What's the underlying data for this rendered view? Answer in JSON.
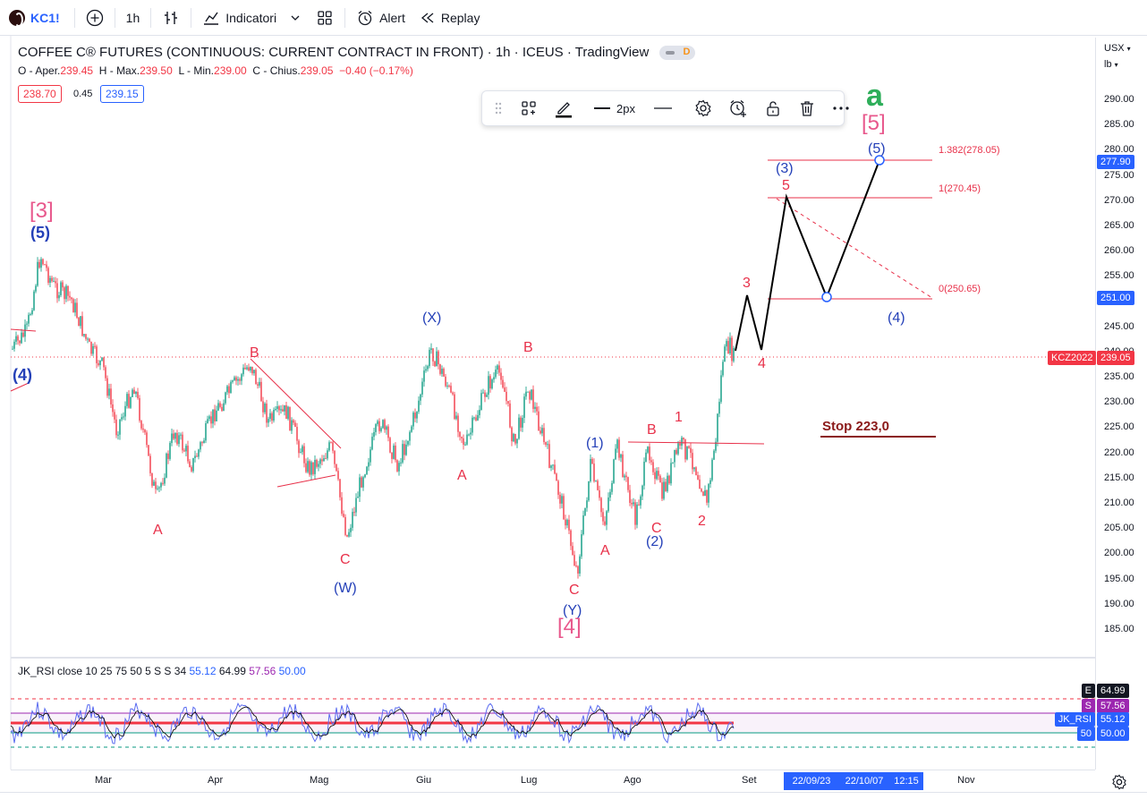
{
  "topbar": {
    "symbol": "KC1!",
    "add_icon": "plus-circle-icon",
    "interval": "1h",
    "bar_style_icon": "candles-icon",
    "indicators_label": "Indicatori",
    "templates_icon": "grid-icon",
    "alert_label": "Alert",
    "replay_label": "Replay"
  },
  "legend": {
    "title": "COFFEE C® FUTURES (CONTINUOUS: CURRENT CONTRACT IN FRONT) · 1h · ICEUS · TradingView",
    "badge": "D",
    "o_label": "O - Aper.",
    "o": "239.45",
    "h_label": "H - Max.",
    "h": "239.50",
    "l_label": "L - Min.",
    "l": "239.00",
    "c_label": "C - Chius.",
    "c": "239.05",
    "chg": "−0.40 (−0.17%)",
    "bid": "238.70",
    "spread": "0.45",
    "ask": "239.15"
  },
  "drawing_toolbar": {
    "width_label": "2px",
    "icons": [
      "drag-handle-icon",
      "template-icon",
      "pencil-icon",
      "line-width-icon",
      "line-style-icon",
      "settings-icon",
      "alert-add-icon",
      "unlock-icon",
      "trash-icon",
      "more-icon"
    ]
  },
  "price_axis": {
    "currency": "USX",
    "unit": "lb",
    "ticks": [
      "290.00",
      "285.00",
      "280.00",
      "275.00",
      "270.00",
      "265.00",
      "260.00",
      "255.00",
      "250.00",
      "245.00",
      "240.00",
      "235.00",
      "230.00",
      "225.00",
      "220.00",
      "215.00",
      "210.00",
      "205.00",
      "200.00",
      "195.00",
      "190.00",
      "185.00"
    ],
    "tag_top": "277.90",
    "tag_mid": "251.00",
    "tag_contract": "KCZ2022",
    "tag_price": "239.05"
  },
  "annotations": {
    "fib_1382": "1.382(278.05)",
    "fib_1": "1(270.45)",
    "fib_0": "0(250.65)",
    "stop": "Stop 223,0",
    "wave_a": "a",
    "w5_big": "[5]",
    "w5_small": "(5)",
    "w3_small": "(3)",
    "w5_red": "5",
    "w3_red": "3",
    "w4_red": "4",
    "w4_blue": "(4)",
    "w3_big": "[3]",
    "w5_left": "(5)",
    "w4_left": "(4)",
    "b1": "B",
    "a1": "A",
    "c1": "C",
    "w_label": "(W)",
    "x_label": "(X)",
    "b2": "B",
    "a2": "A",
    "c2": "C",
    "y_label": "(Y)",
    "w4_big": "[4]",
    "w1_blue": "(1)",
    "a3": "A",
    "b3": "B",
    "c3": "C",
    "w2_blue": "(2)",
    "w1_red": "1",
    "w2_red": "2"
  },
  "rsi": {
    "legend": "JK_RSI close 10 25 75 50 5 S S 34",
    "v1": "55.12",
    "v2": "64.99",
    "v3": "57.56",
    "v4": "50.00",
    "tags": [
      {
        "key": "E",
        "value": "64.99"
      },
      {
        "key": "S",
        "value": "57.56"
      },
      {
        "key": "JK_RSI",
        "value": "55.12"
      },
      {
        "key": "50",
        "value": "50.00"
      }
    ]
  },
  "time_axis": {
    "labels": [
      "Mar",
      "Apr",
      "Mag",
      "Giu",
      "Lug",
      "Ago",
      "Set",
      "Nov"
    ],
    "range_start": "22/09/23",
    "range_end": "22/10/07",
    "range_time": "12:15",
    "settings_icon": "gear-icon"
  }
}
